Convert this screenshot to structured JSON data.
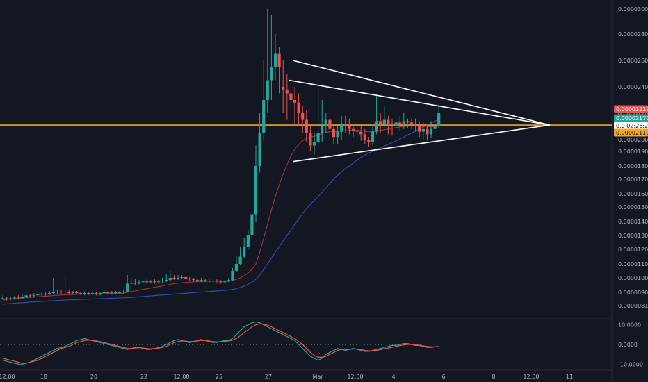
{
  "chart_data": [
    {
      "type": "candlestick",
      "title": "",
      "colors": {
        "up": "#26a69a",
        "down": "#ef5350",
        "fast_ma": "#b5343a",
        "slow_ma": "#3b4fa8",
        "trendline": "#ffffff",
        "hline": "#f5a623"
      },
      "y_ticks": [
        "0.00003000",
        "0.00002800",
        "0.00002600",
        "0.00002400",
        "0.00002200",
        "0.00002000",
        "0.00001900",
        "0.00001800",
        "0.00001700",
        "0.00001600",
        "0.00001500",
        "0.00001400",
        "0.00001300",
        "0.00001200",
        "0.00001100",
        "0.00001000",
        "0.00000900",
        "0.00000810"
      ],
      "x_ticks": [
        "12:00",
        "18",
        "20",
        "22",
        "12:00",
        "25",
        "27",
        "Mar",
        "12:00",
        "4",
        "6",
        "8",
        "12:00",
        "11"
      ],
      "price_tags": [
        {
          "label": "0.00002219",
          "value": 2219,
          "color": "#ef5350"
        },
        {
          "label": "0.00002170",
          "value": 2170,
          "color": "#26a69a"
        },
        {
          "label": "0.0 02:26:24",
          "value": 2110,
          "color": "#ffffff"
        },
        {
          "label": "0.00002110",
          "value": 2110,
          "color": "#f5a623"
        }
      ],
      "horizontal_line": 2110,
      "dotted_level": 2170,
      "note": "price axis in units of 1e-8 (values 810 to 3000 correspond to 0.00000810 to 0.00003000)",
      "candles": [
        [
          860,
          860,
          880,
          850
        ],
        [
          860,
          855,
          870,
          845
        ],
        [
          855,
          860,
          870,
          845
        ],
        [
          860,
          865,
          875,
          850
        ],
        [
          865,
          860,
          880,
          850
        ],
        [
          860,
          870,
          885,
          855
        ],
        [
          870,
          880,
          900,
          860
        ],
        [
          880,
          875,
          890,
          865
        ],
        [
          875,
          880,
          895,
          865
        ],
        [
          880,
          890,
          905,
          870
        ],
        [
          890,
          885,
          900,
          875
        ],
        [
          885,
          890,
          905,
          875
        ],
        [
          890,
          895,
          910,
          880
        ],
        [
          895,
          900,
          1000,
          885
        ],
        [
          900,
          905,
          920,
          890
        ],
        [
          905,
          900,
          915,
          890
        ],
        [
          900,
          905,
          1020,
          890
        ],
        [
          905,
          895,
          915,
          885
        ],
        [
          895,
          900,
          910,
          885
        ],
        [
          900,
          895,
          910,
          885
        ],
        [
          895,
          890,
          905,
          880
        ],
        [
          890,
          895,
          905,
          880
        ],
        [
          895,
          890,
          905,
          880
        ],
        [
          890,
          895,
          910,
          880
        ],
        [
          895,
          890,
          905,
          880
        ],
        [
          890,
          895,
          905,
          880
        ],
        [
          895,
          900,
          915,
          885
        ],
        [
          900,
          895,
          910,
          885
        ],
        [
          895,
          900,
          910,
          885
        ],
        [
          900,
          895,
          910,
          885
        ],
        [
          895,
          900,
          910,
          885
        ],
        [
          900,
          905,
          920,
          890
        ],
        [
          905,
          960,
          1020,
          900
        ],
        [
          960,
          965,
          1000,
          950
        ],
        [
          965,
          960,
          990,
          950
        ],
        [
          960,
          970,
          985,
          955
        ],
        [
          970,
          975,
          995,
          960
        ],
        [
          975,
          970,
          990,
          960
        ],
        [
          970,
          975,
          985,
          960
        ],
        [
          975,
          970,
          990,
          960
        ],
        [
          970,
          975,
          985,
          960
        ],
        [
          975,
          980,
          1000,
          965
        ],
        [
          980,
          985,
          1030,
          970
        ],
        [
          985,
          1000,
          1050,
          975
        ],
        [
          1000,
          995,
          1020,
          985
        ],
        [
          995,
          1000,
          1020,
          985
        ],
        [
          1000,
          1005,
          1020,
          990
        ],
        [
          1005,
          995,
          1015,
          985
        ],
        [
          995,
          990,
          1005,
          980
        ],
        [
          990,
          985,
          1000,
          975
        ],
        [
          985,
          980,
          995,
          970
        ],
        [
          980,
          985,
          1000,
          970
        ],
        [
          985,
          980,
          995,
          970
        ],
        [
          980,
          975,
          990,
          965
        ],
        [
          975,
          980,
          990,
          965
        ],
        [
          980,
          975,
          990,
          965
        ],
        [
          975,
          970,
          985,
          960
        ],
        [
          970,
          975,
          985,
          960
        ],
        [
          975,
          985,
          1000,
          970
        ],
        [
          985,
          1050,
          1070,
          980
        ],
        [
          1050,
          1100,
          1150,
          1040
        ],
        [
          1100,
          1150,
          1220,
          1090
        ],
        [
          1150,
          1220,
          1280,
          1140
        ],
        [
          1220,
          1300,
          1340,
          1200
        ],
        [
          1300,
          1450,
          1480,
          1280
        ],
        [
          1450,
          1800,
          1950,
          1400
        ],
        [
          1800,
          2050,
          2200,
          1750
        ],
        [
          2050,
          2300,
          2600,
          2000
        ],
        [
          2300,
          2450,
          3000,
          2200
        ],
        [
          2450,
          2550,
          2950,
          2300
        ],
        [
          2550,
          2650,
          2800,
          2450
        ],
        [
          2650,
          2550,
          2700,
          2350
        ],
        [
          2400,
          2380,
          2600,
          2200
        ],
        [
          2380,
          2350,
          2500,
          2150
        ],
        [
          2350,
          2300,
          2420,
          2250
        ],
        [
          2300,
          2280,
          2400,
          2120
        ],
        [
          2280,
          2200,
          2350,
          2100
        ],
        [
          2200,
          2150,
          2260,
          2050
        ],
        [
          2150,
          2050,
          2220,
          1980
        ],
        [
          2050,
          1950,
          2100,
          1900
        ],
        [
          1950,
          1980,
          2050,
          1880
        ],
        [
          1980,
          2050,
          2400,
          1950
        ],
        [
          2050,
          2100,
          2300,
          1980
        ],
        [
          2100,
          2150,
          2200,
          2050
        ],
        [
          2150,
          2080,
          2200,
          2000
        ],
        [
          2080,
          2020,
          2120,
          1960
        ],
        [
          2020,
          2060,
          2100,
          1960
        ],
        [
          2060,
          2120,
          2180,
          2000
        ],
        [
          2120,
          2100,
          2180,
          2050
        ],
        [
          2100,
          2080,
          2160,
          2040
        ],
        [
          2080,
          2070,
          2120,
          2020
        ],
        [
          2070,
          2060,
          2100,
          2000
        ],
        [
          2060,
          2040,
          2100,
          1990
        ],
        [
          2040,
          2000,
          2080,
          1960
        ],
        [
          2000,
          1980,
          2020,
          1940
        ],
        [
          1980,
          2060,
          2120,
          1950
        ],
        [
          2060,
          2140,
          2330,
          2040
        ],
        [
          2140,
          2120,
          2200,
          2050
        ],
        [
          2120,
          2150,
          2250,
          2090
        ],
        [
          2150,
          2110,
          2180,
          2040
        ],
        [
          2110,
          2100,
          2160,
          2030
        ],
        [
          2100,
          2130,
          2180,
          2080
        ],
        [
          2130,
          2120,
          2180,
          2070
        ],
        [
          2120,
          2140,
          2200,
          2080
        ],
        [
          2140,
          2130,
          2160,
          2090
        ],
        [
          2130,
          2120,
          2160,
          2080
        ],
        [
          2120,
          2100,
          2160,
          2060
        ],
        [
          2100,
          2060,
          2140,
          2020
        ],
        [
          2060,
          2080,
          2130,
          2000
        ],
        [
          2080,
          2040,
          2120,
          2000
        ],
        [
          2040,
          2080,
          2140,
          2010
        ],
        [
          2080,
          2100,
          2130,
          2060
        ],
        [
          2100,
          2200,
          2250,
          2090
        ]
      ],
      "fast_ma": [
        850,
        852,
        855,
        857,
        860,
        862,
        864,
        866,
        868,
        870,
        872,
        874,
        876,
        878,
        880,
        882,
        884,
        885,
        886,
        887,
        888,
        888,
        889,
        889,
        890,
        890,
        891,
        892,
        893,
        894,
        894,
        895,
        900,
        905,
        910,
        915,
        920,
        925,
        930,
        935,
        940,
        945,
        950,
        955,
        960,
        963,
        966,
        968,
        970,
        972,
        974,
        975,
        976,
        977,
        977,
        977,
        977,
        977,
        978,
        982,
        990,
        1000,
        1015,
        1035,
        1060,
        1100,
        1180,
        1280,
        1380,
        1480,
        1580,
        1660,
        1740,
        1810,
        1870,
        1920,
        1960,
        1990,
        2010,
        2020,
        2025,
        2035,
        2045,
        2055,
        2060,
        2060,
        2060,
        2065,
        2068,
        2070,
        2070,
        2070,
        2068,
        2065,
        2060,
        2060,
        2065,
        2070,
        2075,
        2080,
        2085,
        2090,
        2095,
        2100,
        2102,
        2104,
        2104,
        2102,
        2100,
        2098,
        2097,
        2098,
        2105
      ],
      "slow_ma": [
        820,
        822,
        824,
        826,
        828,
        830,
        832,
        834,
        835,
        837,
        839,
        840,
        842,
        843,
        845,
        846,
        848,
        849,
        850,
        851,
        852,
        853,
        854,
        855,
        856,
        857,
        858,
        859,
        860,
        861,
        862,
        863,
        864,
        866,
        868,
        870,
        872,
        874,
        876,
        878,
        880,
        882,
        884,
        886,
        888,
        890,
        892,
        894,
        896,
        898,
        900,
        902,
        904,
        906,
        908,
        910,
        912,
        914,
        916,
        920,
        926,
        934,
        944,
        956,
        970,
        990,
        1020,
        1060,
        1100,
        1140,
        1180,
        1220,
        1260,
        1300,
        1340,
        1380,
        1420,
        1455,
        1490,
        1520,
        1550,
        1580,
        1610,
        1640,
        1670,
        1700,
        1730,
        1755,
        1780,
        1800,
        1820,
        1840,
        1860,
        1875,
        1890,
        1900,
        1915,
        1930,
        1945,
        1960,
        1975,
        1990,
        2005,
        2020,
        2035,
        2050,
        2065,
        2080,
        2095,
        2110,
        2125,
        2140,
        2155
      ],
      "trendlines": [
        {
          "from": [
            74.5,
            2600
          ],
          "to": [
            140.5,
            2110
          ]
        },
        {
          "from": [
            73.5,
            2450
          ],
          "to": [
            140.5,
            2110
          ]
        },
        {
          "from": [
            74.5,
            1830
          ],
          "to": [
            140.5,
            2110
          ]
        }
      ]
    },
    {
      "type": "line",
      "title": "",
      "y_ticks": [
        "10.0000",
        "0.0000",
        "-10.0000"
      ],
      "ylim": [
        -12,
        12
      ],
      "zero_line": 0,
      "series": [
        {
          "color": "#26a69a",
          "values": [
            -8,
            -8.5,
            -9,
            -9.5,
            -10,
            -10,
            -9.5,
            -9,
            -8,
            -7,
            -6,
            -5,
            -4,
            -3,
            -2,
            -1.5,
            -1,
            0,
            1,
            2,
            2.5,
            3,
            2.5,
            2,
            1.5,
            1,
            0.5,
            0,
            -0.5,
            -1,
            -1.5,
            -2,
            -2.5,
            -2,
            -1.5,
            -1.5,
            -2,
            -2.5,
            -2.5,
            -2,
            -1.5,
            -1,
            0,
            1,
            2,
            2.5,
            2,
            1.5,
            1,
            1.5,
            2,
            2.5,
            2,
            1.5,
            1,
            1,
            1.5,
            2,
            2,
            3,
            5,
            7,
            9,
            10,
            11,
            11.5,
            11,
            10,
            9,
            8,
            7,
            6,
            5,
            4,
            3,
            2,
            0,
            -2,
            -4,
            -6,
            -7,
            -8,
            -7,
            -5,
            -4,
            -3,
            -2,
            -2.5,
            -3,
            -2.5,
            -2,
            -2.5,
            -3,
            -3.5,
            -3.5,
            -3,
            -2.5,
            -2,
            -1.5,
            -1,
            -0.5,
            -0.5,
            0,
            0.5,
            0.5,
            0,
            -0.5,
            -0.5,
            -1,
            -1.5,
            -1.5,
            -1.2,
            -1
          ]
        },
        {
          "color": "#ef5350",
          "values": [
            -7,
            -7.5,
            -8,
            -8.5,
            -9,
            -9.5,
            -9.5,
            -9,
            -8.5,
            -8,
            -7,
            -6,
            -5,
            -4,
            -3,
            -2,
            -1.5,
            -1,
            0,
            1,
            1.5,
            2,
            2.2,
            2,
            1.8,
            1.5,
            1,
            0.5,
            0,
            -0.5,
            -1,
            -1.5,
            -2,
            -2,
            -1.8,
            -1.6,
            -1.8,
            -2,
            -2.2,
            -2,
            -1.8,
            -1.5,
            -1,
            0,
            1,
            1.5,
            1.8,
            1.7,
            1.5,
            1.6,
            1.8,
            2,
            2,
            1.8,
            1.5,
            1.3,
            1.4,
            1.6,
            1.8,
            2.2,
            3,
            4.5,
            6,
            7.5,
            9,
            10,
            10.5,
            10.3,
            9.8,
            9,
            8,
            7,
            6,
            5,
            4,
            3,
            1.5,
            0,
            -2,
            -4,
            -5.5,
            -6.5,
            -6.5,
            -6,
            -5,
            -4,
            -3,
            -2.5,
            -2.5,
            -2.5,
            -2.3,
            -2.3,
            -2.5,
            -3,
            -3.2,
            -3.2,
            -3,
            -2.6,
            -2.2,
            -1.8,
            -1.4,
            -1,
            -0.6,
            -0.2,
            0,
            0,
            -0.2,
            -0.4,
            -0.7,
            -1,
            -1.2,
            -1.2,
            -1.1
          ]
        }
      ]
    }
  ]
}
